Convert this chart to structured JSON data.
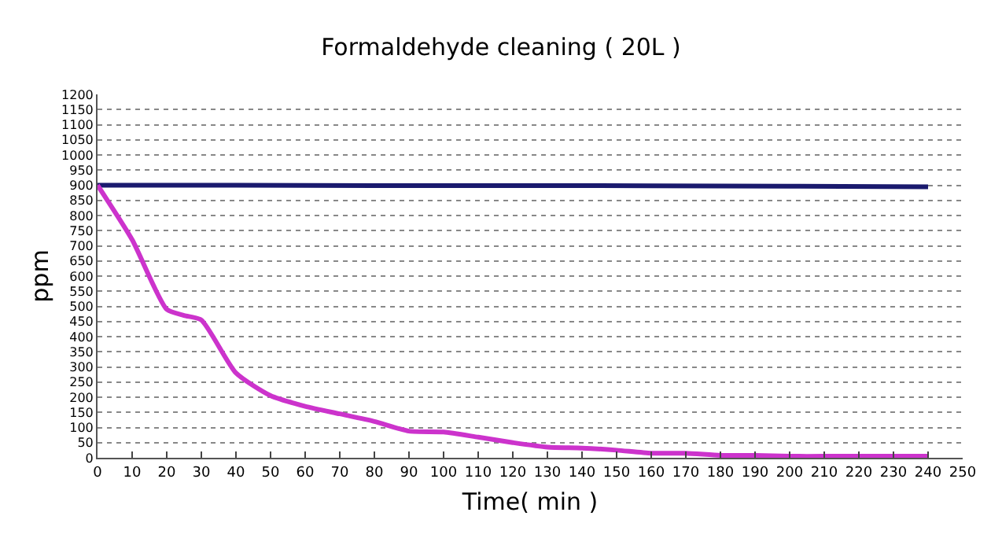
{
  "chart_data": {
    "type": "line",
    "title": "Formaldehyde cleaning ( 20L )",
    "xlabel": "Time( min )",
    "ylabel": "ppm",
    "x": [
      0,
      10,
      20,
      25,
      30,
      40,
      50,
      60,
      70,
      80,
      90,
      100,
      110,
      120,
      130,
      140,
      150,
      160,
      170,
      180,
      190,
      200,
      210,
      220,
      230,
      240
    ],
    "series": [
      {
        "color": "#1a1a6e",
        "x": [
          0,
          40,
          80,
          120,
          160,
          200,
          240
        ],
        "values": [
          900,
          900,
          899,
          899,
          898,
          897,
          895
        ]
      },
      {
        "color": "#cc33cc",
        "values": [
          900,
          720,
          490,
          470,
          455,
          280,
          205,
          170,
          145,
          120,
          88,
          85,
          68,
          50,
          35,
          32,
          25,
          15,
          15,
          8,
          8,
          5,
          5,
          5,
          5,
          5
        ]
      }
    ],
    "xlim": [
      0,
      250
    ],
    "xticks": [
      0,
      10,
      20,
      30,
      40,
      50,
      60,
      70,
      80,
      90,
      100,
      110,
      120,
      130,
      140,
      150,
      160,
      170,
      180,
      190,
      200,
      210,
      220,
      230,
      240,
      250
    ],
    "ylim": [
      0,
      1200
    ],
    "yticks": [
      0,
      50,
      100,
      150,
      200,
      250,
      300,
      350,
      400,
      450,
      500,
      550,
      600,
      650,
      700,
      750,
      800,
      850,
      900,
      950,
      1000,
      1050,
      1100,
      1150,
      1200
    ],
    "grid": "y",
    "marker": "none",
    "line_style": "solid"
  }
}
